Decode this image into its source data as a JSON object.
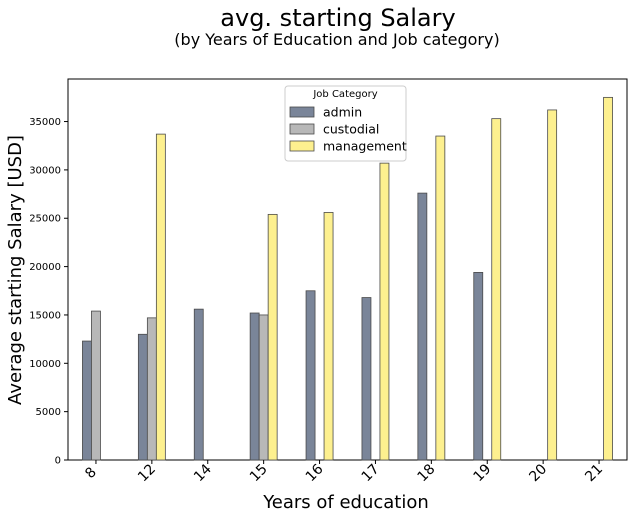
{
  "chart_data": {
    "type": "bar",
    "title": "avg. starting Salary",
    "subtitle": "(by Years of Education and Job category)",
    "xlabel": "Years of education",
    "ylabel": "Average starting Salary [USD]",
    "categories": [
      "8",
      "12",
      "14",
      "15",
      "16",
      "17",
      "18",
      "19",
      "20",
      "21"
    ],
    "series": [
      {
        "name": "admin",
        "color": "#7a8599",
        "values": [
          12300,
          13000,
          15600,
          15200,
          17500,
          16800,
          27600,
          19400,
          null,
          null
        ]
      },
      {
        "name": "custodial",
        "color": "#b8b8b8",
        "values": [
          15400,
          14700,
          null,
          15000,
          null,
          null,
          null,
          null,
          null,
          null
        ]
      },
      {
        "name": "management",
        "color": "#fdf08f",
        "values": [
          null,
          33700,
          null,
          25400,
          25600,
          30700,
          33500,
          35300,
          36200,
          37500
        ]
      }
    ],
    "ylim": [
      0,
      39400
    ],
    "yticks": [
      0,
      5000,
      10000,
      15000,
      20000,
      25000,
      30000,
      35000
    ],
    "legend": {
      "title": "Job Category",
      "position": "top-center"
    },
    "grid": false
  }
}
